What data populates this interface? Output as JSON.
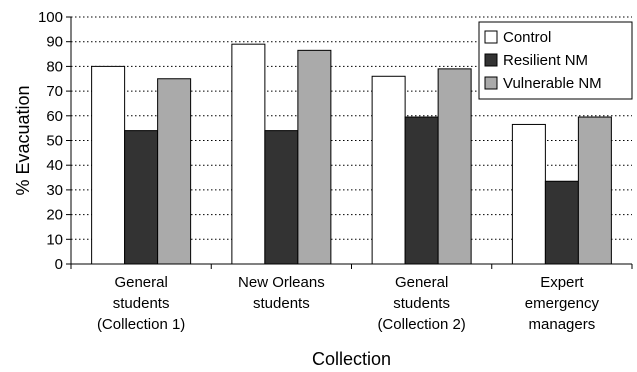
{
  "chart_data": {
    "type": "bar",
    "categories": [
      [
        "General",
        "students",
        "(Collection 1)"
      ],
      [
        "New Orleans",
        "students"
      ],
      [
        "General",
        "students",
        "(Collection 2)"
      ],
      [
        "Expert",
        "emergency",
        "managers"
      ]
    ],
    "series": [
      {
        "name": "Control",
        "color": "#ffffff",
        "values": [
          80,
          89,
          76,
          56.5
        ]
      },
      {
        "name": "Resilient NM",
        "color": "#333333",
        "values": [
          54,
          54,
          59.5,
          33.5
        ]
      },
      {
        "name": "Vulnerable NM",
        "color": "#aaaaaa",
        "values": [
          75,
          86.5,
          79,
          59.5
        ]
      }
    ],
    "xlabel": "Collection",
    "ylabel": "% Evacuation",
    "ylim": [
      0,
      100
    ],
    "yticks": [
      "0",
      "10",
      "20",
      "30",
      "40",
      "50",
      "60",
      "70",
      "80",
      "90",
      "100"
    ],
    "grid": true,
    "legend_position": "top-right"
  }
}
